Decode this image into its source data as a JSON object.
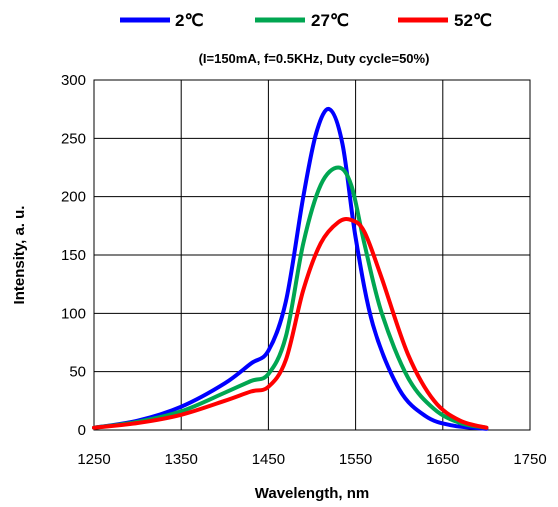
{
  "chart_data": {
    "type": "line",
    "title": "",
    "subtitle": "(I=150mA, f=0.5KHz, Duty cycle=50%)",
    "xlabel": "Wavelength,  nm",
    "ylabel": "Intensity,  a. u.",
    "xlim": [
      1250,
      1750
    ],
    "ylim": [
      0,
      300
    ],
    "xticks": [
      "1250",
      "1350",
      "1450",
      "1550",
      "1650",
      "1750"
    ],
    "yticks": [
      "0",
      "50",
      "100",
      "150",
      "200",
      "250",
      "300"
    ],
    "grid": true,
    "legend_position": "top",
    "series": [
      {
        "name": "2℃",
        "color": "#0000FF",
        "x": [
          1250,
          1300,
          1350,
          1400,
          1430,
          1450,
          1470,
          1490,
          1505,
          1520,
          1535,
          1550,
          1570,
          1600,
          1630,
          1660,
          1700
        ],
        "y": [
          2,
          8,
          20,
          40,
          57,
          68,
          110,
          200,
          255,
          275,
          245,
          165,
          90,
          35,
          12,
          4,
          1
        ]
      },
      {
        "name": "27℃",
        "color": "#00A651",
        "x": [
          1250,
          1300,
          1350,
          1400,
          1430,
          1450,
          1470,
          1490,
          1510,
          1530,
          1545,
          1560,
          1580,
          1610,
          1640,
          1670,
          1700
        ],
        "y": [
          2,
          7,
          16,
          32,
          42,
          48,
          80,
          160,
          210,
          225,
          210,
          160,
          100,
          45,
          18,
          6,
          2
        ]
      },
      {
        "name": "52℃",
        "color": "#FF0000",
        "x": [
          1250,
          1300,
          1350,
          1400,
          1430,
          1450,
          1470,
          1490,
          1510,
          1530,
          1545,
          1560,
          1580,
          1610,
          1640,
          1670,
          1700
        ],
        "y": [
          2,
          6,
          13,
          25,
          33,
          37,
          60,
          120,
          160,
          178,
          180,
          170,
          130,
          65,
          25,
          8,
          2
        ]
      }
    ]
  }
}
